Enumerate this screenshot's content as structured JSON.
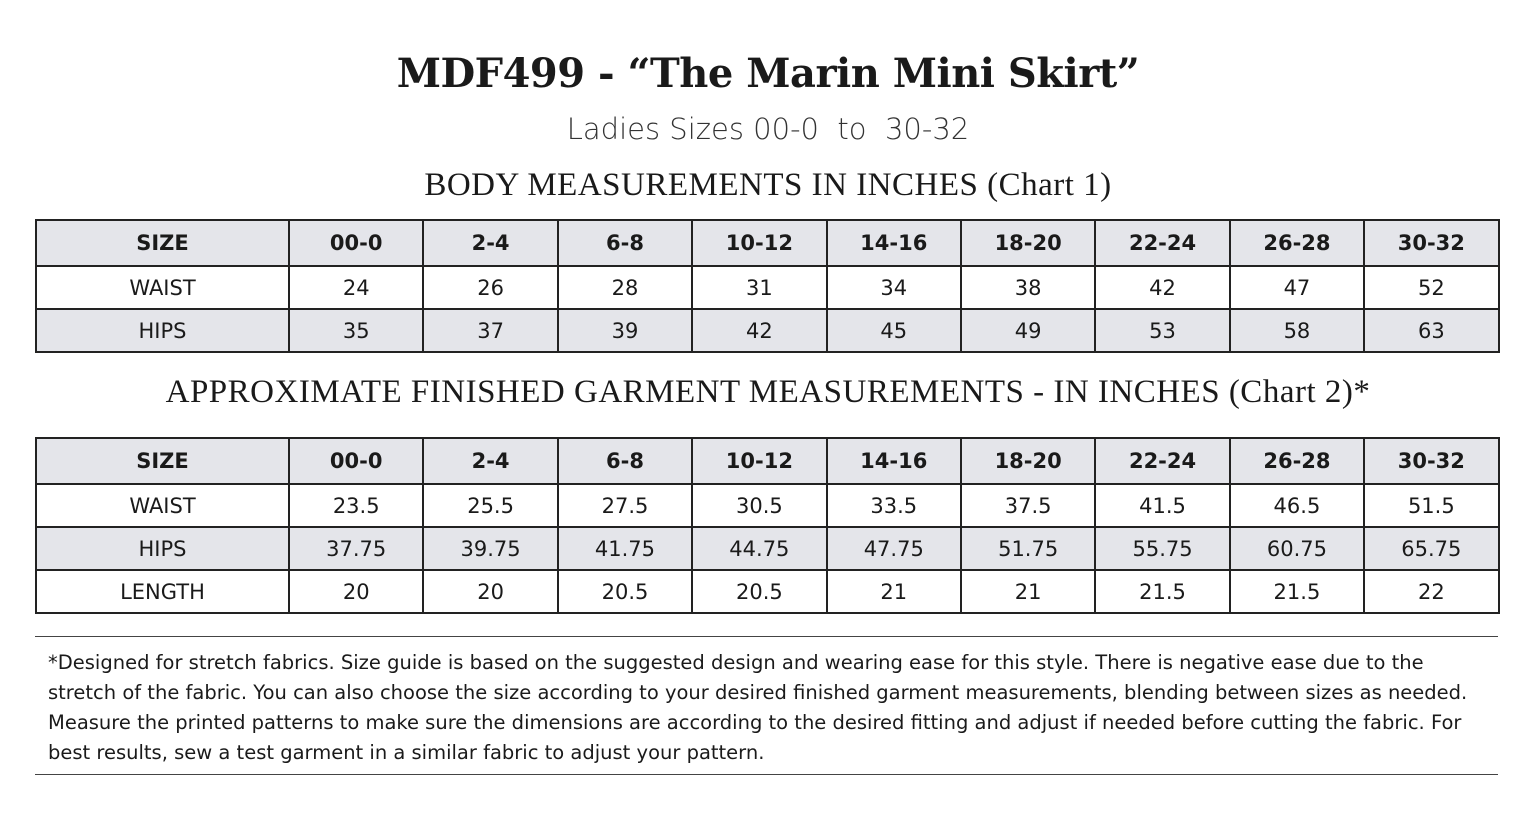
{
  "header": {
    "title": "MDF499 - “The Marin Mini Skirt”",
    "subtitle": "Ladies Sizes 00-0  to  30-32"
  },
  "chart1": {
    "heading": "BODY MEASUREMENTS IN INCHES (Chart 1)",
    "rows": [
      [
        "SIZE",
        "00-0",
        "2-4",
        "6-8",
        "10-12",
        "14-16",
        "18-20",
        "22-24",
        "26-28",
        "30-32"
      ],
      [
        "WAIST",
        "24",
        "26",
        "28",
        "31",
        "34",
        "38",
        "42",
        "47",
        "52"
      ],
      [
        "HIPS",
        "35",
        "37",
        "39",
        "42",
        "45",
        "49",
        "53",
        "58",
        "63"
      ]
    ]
  },
  "chart2": {
    "heading": "APPROXIMATE FINISHED GARMENT MEASUREMENTS - IN INCHES (Chart 2)*",
    "rows": [
      [
        "SIZE",
        "00-0",
        "2-4",
        "6-8",
        "10-12",
        "14-16",
        "18-20",
        "22-24",
        "26-28",
        "30-32"
      ],
      [
        "WAIST",
        "23.5",
        "25.5",
        "27.5",
        "30.5",
        "33.5",
        "37.5",
        "41.5",
        "46.5",
        "51.5"
      ],
      [
        "HIPS",
        "37.75",
        "39.75",
        "41.75",
        "44.75",
        "47.75",
        "51.75",
        "55.75",
        "60.75",
        "65.75"
      ],
      [
        "LENGTH",
        "20",
        "20",
        "20.5",
        "20.5",
        "21",
        "21",
        "21.5",
        "21.5",
        "22"
      ]
    ]
  },
  "footnote": "*Designed for stretch fabrics. Size guide is based on the suggested design and wearing ease for this style. There is negative ease due to the stretch of the fabric. You can also choose the size according to your desired finished garment measurements, blending between sizes as needed. Measure the printed patterns to make sure the dimensions are according to the desired fitting and adjust if needed before cutting the fabric. For best results, sew a test garment in a similar fabric to adjust your pattern."
}
